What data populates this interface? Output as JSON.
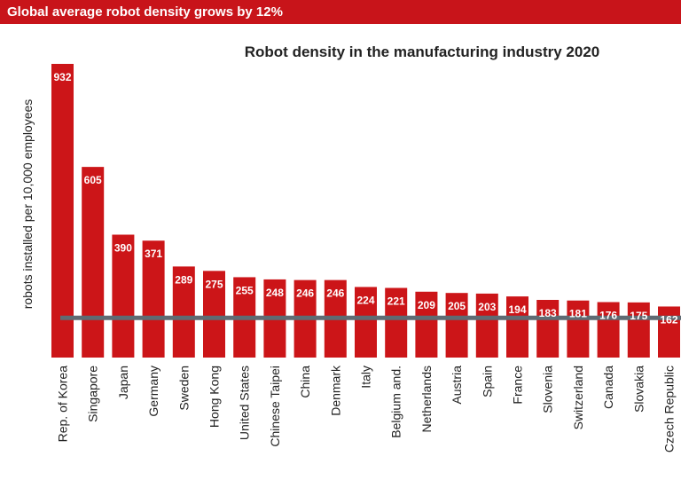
{
  "banner": {
    "text": "Global average robot density grows by 12%"
  },
  "chart_data": {
    "type": "bar",
    "title": "Robot density in the manufacturing industry 2020",
    "ylabel": "robots installed per 10,000 employees",
    "xlabel": "",
    "categories": [
      "Rep. of Korea",
      "Singapore",
      "Japan",
      "Germany",
      "Sweden",
      "Hong Kong",
      "United States",
      "Chinese Taipei",
      "China",
      "Denmark",
      "Italy",
      "Belgium and.",
      "Netherlands",
      "Austria",
      "Spain",
      "France",
      "Slovenia",
      "Switzerland",
      "Canada",
      "Slovakia",
      "Czech Republic"
    ],
    "values": [
      932,
      605,
      390,
      371,
      289,
      275,
      255,
      248,
      246,
      246,
      224,
      221,
      209,
      205,
      203,
      194,
      183,
      181,
      176,
      175,
      162
    ],
    "average_line": 126,
    "ylim": [
      0,
      932
    ],
    "grid": false,
    "colors": {
      "bar": "#cc1518",
      "average_line": "#5f6b73",
      "banner": "#c8141a"
    }
  }
}
